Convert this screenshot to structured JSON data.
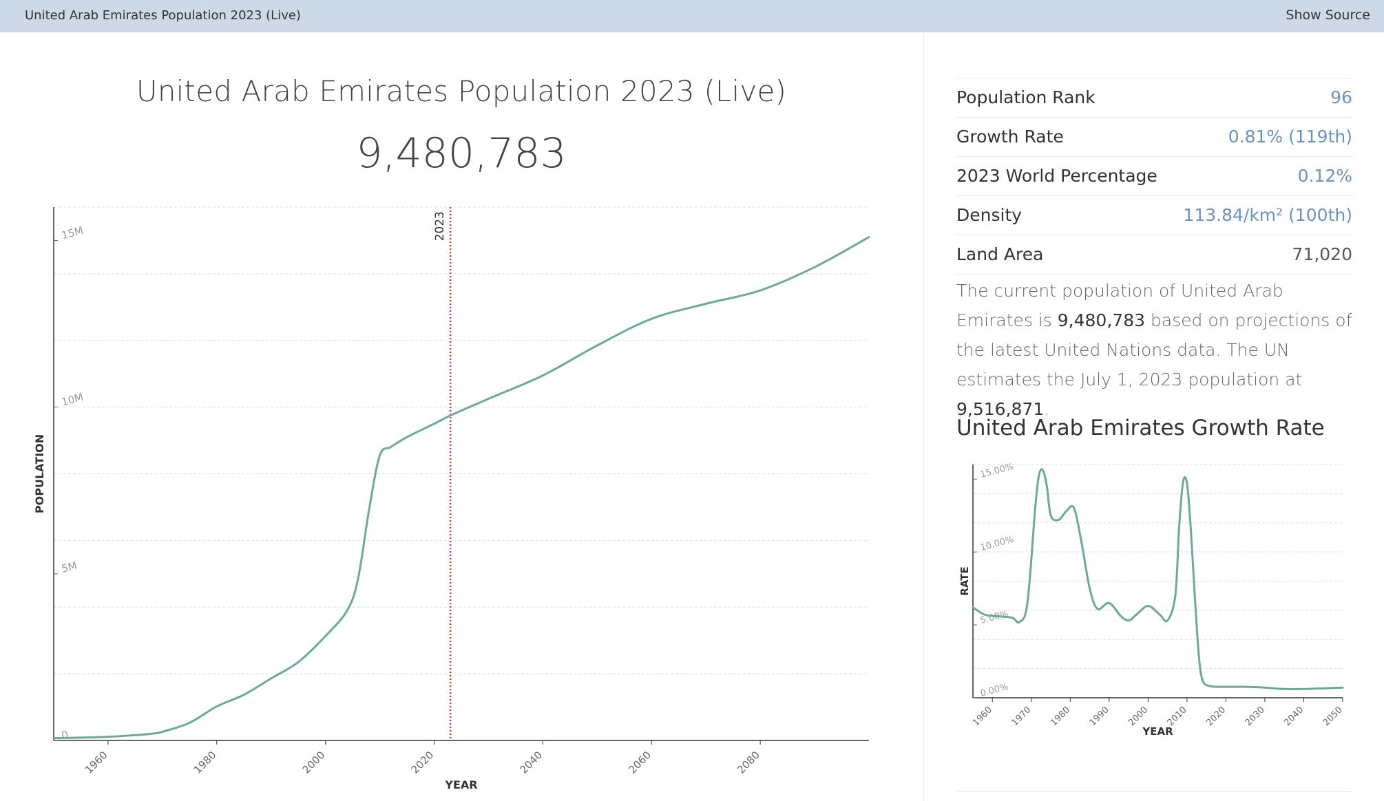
{
  "topbar": {
    "title": "United Arab Emirates Population 2023 (Live)",
    "show_source": "Show Source"
  },
  "header": {
    "title": "United Arab Emirates Population 2023 (Live)",
    "live_count": "9,480,783"
  },
  "stats": [
    {
      "label": "Population Rank",
      "value": "96"
    },
    {
      "label": "Growth Rate",
      "value": "0.81% (119th)"
    },
    {
      "label": "2023 World Percentage",
      "value": "0.12%"
    },
    {
      "label": "Density",
      "value": "113.84/km² (100th)"
    },
    {
      "label": "Land Area",
      "value": "71,020"
    }
  ],
  "description": {
    "p1": "The current population of United Arab Emirates is ",
    "b1": "9,480,783",
    "p2": " based on projections of the latest United Nations data. The UN estimates the July 1, 2023 population at ",
    "b2": "9,516,871",
    "p3": "."
  },
  "growth_rate_title": "United Arab Emirates Growth Rate",
  "colors": {
    "line": "#6aaa96",
    "marker": "#e03030",
    "link": "#6b93c2",
    "topbar": "#cdd9e6"
  },
  "chart_data": [
    {
      "type": "line",
      "xlabel": "YEAR",
      "ylabel": "POPULATION",
      "xlim": [
        1950,
        2100
      ],
      "ylim": [
        0,
        16000000
      ],
      "x_ticks": [
        1960,
        1980,
        2000,
        2020,
        2040,
        2060,
        2080
      ],
      "y_ticks": [
        {
          "value": 0,
          "label": "0"
        },
        {
          "value": 5000000,
          "label": "5M"
        },
        {
          "value": 10000000,
          "label": "10M"
        },
        {
          "value": 15000000,
          "label": "15M"
        }
      ],
      "grid": true,
      "marker": {
        "year": 2023,
        "label": "2023"
      },
      "series": [
        {
          "x": [
            1950,
            1955,
            1960,
            1965,
            1968,
            1970,
            1975,
            1980,
            1985,
            1990,
            1995,
            2000,
            2004,
            2006,
            2008,
            2010,
            2012,
            2015,
            2020,
            2023,
            2030,
            2040,
            2050,
            2060,
            2070,
            2080,
            2090,
            2100
          ],
          "y": [
            70000,
            85000,
            110000,
            160000,
            200000,
            260000,
            530000,
            1020000,
            1370000,
            1860000,
            2350000,
            3130000,
            3900000,
            4850000,
            6900000,
            8550000,
            8800000,
            9100000,
            9500000,
            9750000,
            10250000,
            10950000,
            11850000,
            12650000,
            13100000,
            13500000,
            14200000,
            15100000
          ]
        }
      ]
    },
    {
      "type": "line",
      "title": "United Arab Emirates Growth Rate",
      "xlabel": "YEAR",
      "ylabel": "RATE",
      "xlim": [
        1955,
        2050
      ],
      "ylim": [
        0,
        16
      ],
      "x_ticks": [
        1960,
        1970,
        1980,
        1990,
        2000,
        2010,
        2020,
        2030,
        2040,
        2050
      ],
      "y_ticks": [
        {
          "value": 0,
          "label": "0.00%"
        },
        {
          "value": 5,
          "label": "5.00%"
        },
        {
          "value": 10,
          "label": "10.00%"
        },
        {
          "value": 15,
          "label": "15.00%"
        }
      ],
      "grid": true,
      "series": [
        {
          "x": [
            1955,
            1958,
            1961,
            1965,
            1967,
            1969,
            1971,
            1972,
            1973,
            1974,
            1975,
            1977,
            1979,
            1981,
            1983,
            1985,
            1987,
            1990,
            1993,
            1995,
            1997,
            2000,
            2003,
            2005,
            2007,
            2008,
            2009,
            2010,
            2011,
            2012,
            2013,
            2014,
            2016,
            2020,
            2025,
            2030,
            2035,
            2040,
            2045,
            2050
          ],
          "y": [
            6.2,
            5.7,
            5.6,
            5.5,
            5.2,
            6.5,
            13.0,
            15.3,
            15.6,
            14.5,
            12.5,
            12.2,
            12.8,
            13.0,
            10.5,
            7.5,
            6.1,
            6.5,
            5.6,
            5.3,
            5.7,
            6.3,
            5.7,
            5.3,
            7.0,
            11.8,
            14.8,
            14.7,
            11.5,
            7.0,
            3.0,
            1.2,
            0.8,
            0.75,
            0.75,
            0.7,
            0.6,
            0.6,
            0.65,
            0.7
          ]
        }
      ]
    }
  ]
}
